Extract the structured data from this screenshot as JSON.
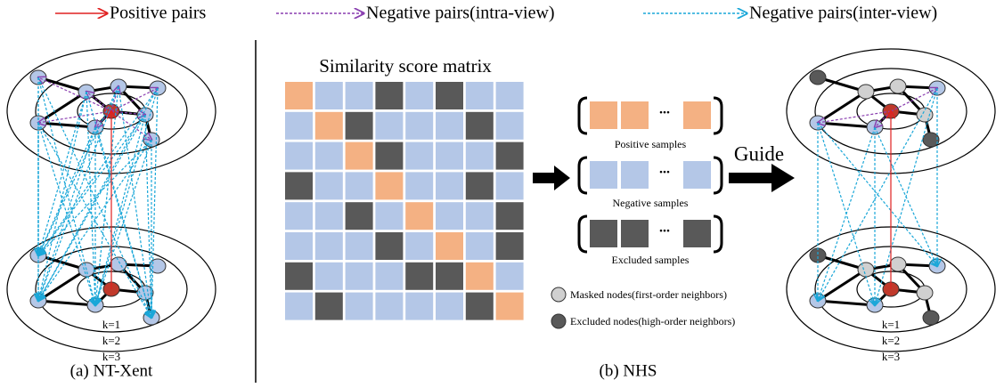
{
  "legend": {
    "positive": "Positive pairs",
    "intra": "Negative pairs(intra-view)",
    "inter": "Negative pairs(inter-view)"
  },
  "matrix_title": "Similarity score matrix",
  "samples": {
    "ellipsis": "...",
    "positive": "Positive samples",
    "negative": "Negative samples",
    "excluded": "Excluded samples"
  },
  "guide": "Guide",
  "node_legend": {
    "masked": "Masked nodes(first-order neighbors)",
    "excluded": "Excluded nodes(high-order neighbors)"
  },
  "k_labels": [
    "k=1",
    "k=2",
    "k=3"
  ],
  "captions": {
    "a": "(a) NT-Xent",
    "b": "(b) NHS"
  }
}
